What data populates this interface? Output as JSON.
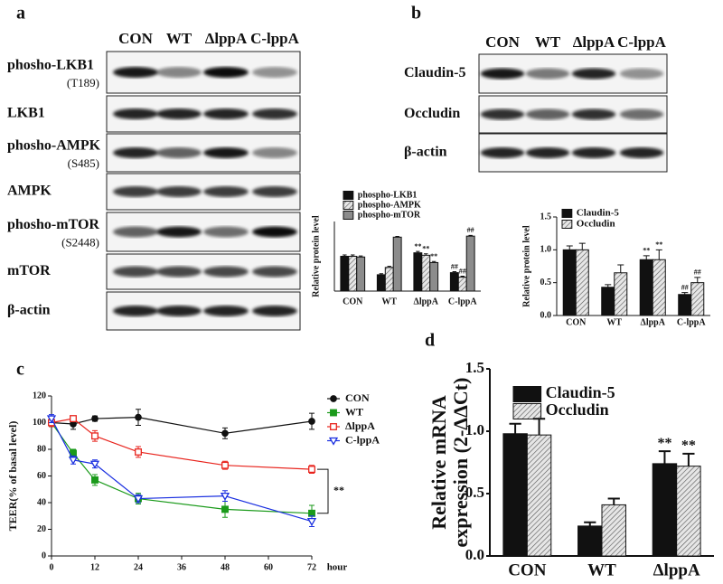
{
  "figure_labels": [
    "a",
    "b",
    "c",
    "d"
  ],
  "blot_a": {
    "lanes": [
      "CON",
      "WT",
      "ΔlppA",
      "C-lppA"
    ],
    "rows": [
      {
        "label": "phosho-LKB1",
        "site": "(T189)"
      },
      {
        "label": "LKB1"
      },
      {
        "label": "phosho-AMPK",
        "site": "(S485)"
      },
      {
        "label": "AMPK"
      },
      {
        "label": "phosho-mTOR",
        "site": "(S2448)"
      },
      {
        "label": "mTOR"
      },
      {
        "label": "β-actin"
      }
    ]
  },
  "blot_b": {
    "lanes": [
      "CON",
      "WT",
      "ΔlppA",
      "C-lppA"
    ],
    "rows": [
      {
        "label": "Claudin-5"
      },
      {
        "label": "Occludin"
      },
      {
        "label": "β-actin"
      }
    ]
  },
  "chart_data": [
    {
      "type": "bar",
      "y_label": [
        "Relative protein level"
      ],
      "categories": [
        "CON",
        "WT",
        "ΔlppA",
        "C-lppA"
      ],
      "ylim": [
        0,
        2
      ],
      "series": [
        {
          "name": "phospho-LKB1",
          "color": "#111111",
          "values": [
            1.0,
            0.47,
            1.1,
            0.53
          ],
          "errors": [
            0.04,
            0.03,
            0.04,
            0.03
          ],
          "markers": [
            null,
            null,
            "**",
            "##"
          ]
        },
        {
          "name": "phospho-AMPK",
          "color": "#e6e6e6",
          "hatch": true,
          "values": [
            1.0,
            0.68,
            1.03,
            0.4
          ],
          "errors": [
            0.04,
            0.03,
            0.04,
            0.03
          ],
          "markers": [
            null,
            null,
            "**",
            "##"
          ]
        },
        {
          "name": "phospho-mTOR",
          "color": "#8c8c8c",
          "values": [
            0.98,
            1.55,
            0.82,
            1.58
          ],
          "errors": [
            0.03,
            0.02,
            0.03,
            0.02
          ],
          "markers": [
            null,
            null,
            "**",
            "##"
          ]
        }
      ]
    },
    {
      "type": "bar",
      "y_label": [
        "Relative protein level"
      ],
      "categories": [
        "CON",
        "WT",
        "ΔlppA",
        "C-lppA"
      ],
      "ylim": [
        0,
        1.5
      ],
      "yticks": [
        {
          "value": 0,
          "label": "0.0"
        },
        {
          "value": 0.5,
          "label": "0.5"
        },
        {
          "value": 1,
          "label": "1.0"
        },
        {
          "value": 1.5,
          "label": "1.5"
        }
      ],
      "series": [
        {
          "name": "Claudin-5",
          "color": "#111111",
          "values": [
            1.0,
            0.43,
            0.85,
            0.32
          ],
          "errors": [
            0.06,
            0.04,
            0.06,
            0.03
          ],
          "markers": [
            null,
            null,
            "**",
            "##"
          ]
        },
        {
          "name": "Occludin",
          "color": "#e6e6e6",
          "hatch": true,
          "values": [
            1.0,
            0.65,
            0.85,
            0.5
          ],
          "errors": [
            0.1,
            0.12,
            0.15,
            0.08
          ],
          "markers": [
            null,
            null,
            "**",
            "##"
          ]
        }
      ]
    },
    {
      "type": "line",
      "y_label": [
        "TEER(% of basal level)"
      ],
      "x_label": "hour",
      "annotation": "**",
      "x": [
        0,
        6,
        12,
        24,
        48,
        72
      ],
      "xlim": [
        0,
        75
      ],
      "xticks": [
        0,
        12,
        24,
        36,
        48,
        60,
        72
      ],
      "ylim": [
        0,
        120
      ],
      "yticks": [
        0,
        20,
        40,
        60,
        80,
        100,
        120
      ],
      "series": [
        {
          "name": "CON",
          "color": "#111111",
          "marker": "circle",
          "values": [
            100,
            99,
            103,
            104,
            92,
            101
          ],
          "errors": [
            3,
            4,
            2,
            6,
            4,
            6
          ]
        },
        {
          "name": "WT",
          "color": "#1a9a1a",
          "marker": "square",
          "values": [
            100,
            77,
            57,
            43,
            35,
            32
          ],
          "errors": [
            3,
            3,
            4,
            4,
            6,
            6
          ]
        },
        {
          "name": "ΔlppA",
          "color": "#e8231c",
          "marker": "square-open",
          "values": [
            100,
            103,
            90,
            78,
            68,
            65
          ],
          "errors": [
            3,
            2,
            4,
            4,
            3,
            3
          ]
        },
        {
          "name": "C-lppA",
          "color": "#1a2fe0",
          "marker": "triangle-open",
          "values": [
            103,
            72,
            69,
            43,
            45,
            26
          ],
          "errors": [
            3,
            3,
            3,
            3,
            4,
            4
          ]
        }
      ]
    },
    {
      "type": "bar",
      "y_label": [
        "Relative mRNA",
        "expression (2-ΔΔCt)"
      ],
      "categories": [
        "CON",
        "WT",
        "ΔlppA"
      ],
      "ylim": [
        0,
        1.5
      ],
      "yticks": [
        {
          "value": 0,
          "label": "0.0"
        },
        {
          "value": 0.5,
          "label": "0.5"
        },
        {
          "value": 1,
          "label": "1.0"
        },
        {
          "value": 1.5,
          "label": "1.5"
        }
      ],
      "series": [
        {
          "name": "Claudin-5",
          "color": "#111111",
          "values": [
            0.98,
            0.24,
            0.74
          ],
          "errors": [
            0.08,
            0.03,
            0.1
          ],
          "markers": [
            null,
            null,
            "**"
          ]
        },
        {
          "name": "Occludin",
          "color": "#e6e6e6",
          "hatch": true,
          "values": [
            0.97,
            0.41,
            0.72
          ],
          "errors": [
            0.13,
            0.05,
            0.1
          ],
          "markers": [
            null,
            null,
            "**"
          ]
        }
      ]
    }
  ]
}
